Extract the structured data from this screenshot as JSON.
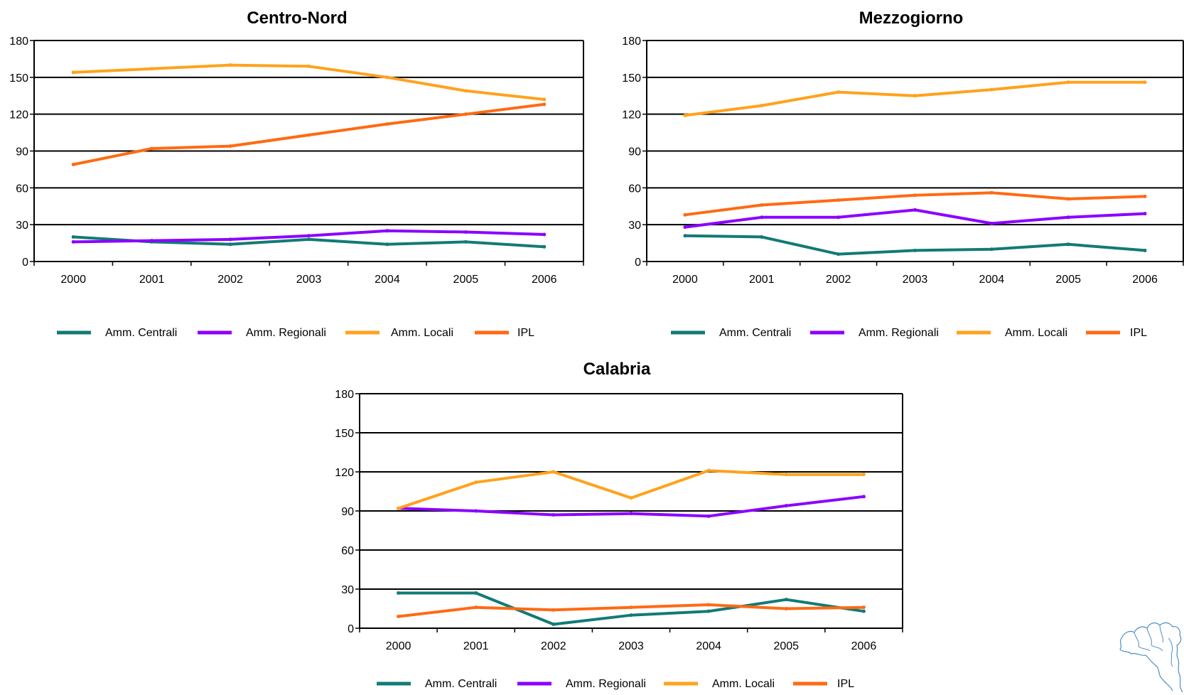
{
  "series_colors": {
    "Amm. Centrali": "#127A76",
    "Amm. Regionali": "#8B00FF",
    "Amm. Locali": "#FFA21D",
    "IPL": "#FF6A13"
  },
  "chart_data": [
    {
      "type": "line",
      "title": "Centro-Nord",
      "xlabel": "",
      "ylabel": "",
      "categories": [
        "2000",
        "2001",
        "2002",
        "2003",
        "2004",
        "2005",
        "2006"
      ],
      "yticks": [
        "0",
        "30",
        "60",
        "90",
        "120",
        "150",
        "180"
      ],
      "ylim": [
        0,
        180
      ],
      "grid": true,
      "legend_position": "bottom",
      "series": [
        {
          "name": "Amm. Centrali",
          "values": [
            20,
            16,
            14,
            18,
            14,
            16,
            12
          ]
        },
        {
          "name": "Amm. Regionali",
          "values": [
            16,
            17,
            18,
            21,
            25,
            24,
            22
          ]
        },
        {
          "name": "Amm. Locali",
          "values": [
            154,
            157,
            160,
            159,
            150,
            139,
            132
          ]
        },
        {
          "name": "IPL",
          "values": [
            79,
            92,
            94,
            103,
            112,
            120,
            128
          ]
        }
      ]
    },
    {
      "type": "line",
      "title": "Mezzogiorno",
      "xlabel": "",
      "ylabel": "",
      "categories": [
        "2000",
        "2001",
        "2002",
        "2003",
        "2004",
        "2005",
        "2006"
      ],
      "yticks": [
        "0",
        "30",
        "60",
        "90",
        "120",
        "150",
        "180"
      ],
      "ylim": [
        0,
        180
      ],
      "grid": true,
      "legend_position": "bottom",
      "series": [
        {
          "name": "Amm. Centrali",
          "values": [
            21,
            20,
            6,
            9,
            10,
            14,
            9
          ]
        },
        {
          "name": "Amm. Regionali",
          "values": [
            28,
            36,
            36,
            42,
            31,
            36,
            39
          ]
        },
        {
          "name": "Amm. Locali",
          "values": [
            119,
            127,
            138,
            135,
            140,
            146,
            146
          ]
        },
        {
          "name": "IPL",
          "values": [
            38,
            46,
            50,
            54,
            56,
            51,
            53
          ]
        }
      ]
    },
    {
      "type": "line",
      "title": "Calabria",
      "xlabel": "",
      "ylabel": "",
      "categories": [
        "2000",
        "2001",
        "2002",
        "2003",
        "2004",
        "2005",
        "2006"
      ],
      "yticks": [
        "0",
        "30",
        "60",
        "90",
        "120",
        "150",
        "180"
      ],
      "ylim": [
        0,
        180
      ],
      "grid": true,
      "legend_position": "bottom",
      "series": [
        {
          "name": "Amm. Centrali",
          "values": [
            27,
            27,
            3,
            10,
            13,
            22,
            13
          ]
        },
        {
          "name": "Amm. Regionali",
          "values": [
            92,
            90,
            87,
            88,
            86,
            94,
            101
          ]
        },
        {
          "name": "Amm. Locali",
          "values": [
            92,
            112,
            120,
            100,
            121,
            118,
            118
          ]
        },
        {
          "name": "IPL",
          "values": [
            9,
            16,
            14,
            16,
            18,
            15,
            16
          ]
        }
      ]
    }
  ],
  "decoration": {
    "icon": "italy-map-outline-icon"
  }
}
